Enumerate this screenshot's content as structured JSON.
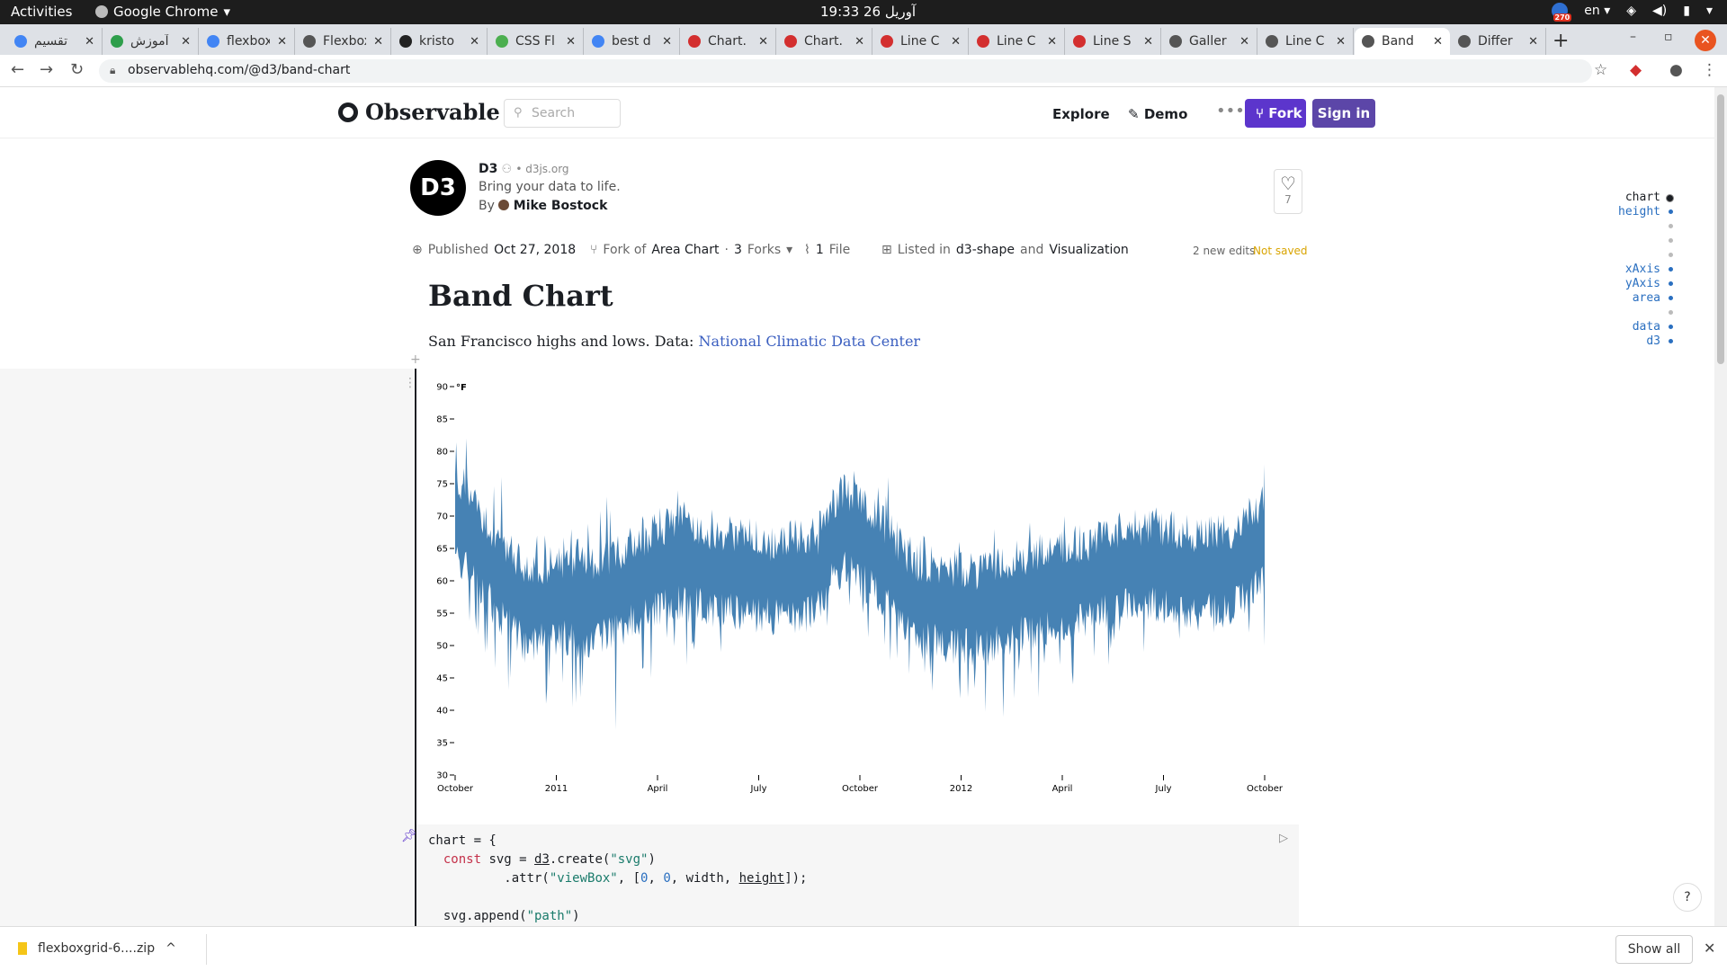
{
  "os": {
    "activities": "Activities",
    "app_name": "Google Chrome",
    "clock": "19:33  26 آوریل",
    "lang": "en",
    "notif_count": "270"
  },
  "tabs": [
    {
      "title": "تقسیم",
      "fav": "#4285f4"
    },
    {
      "title": "آموزش",
      "fav": "#2e9e4b"
    },
    {
      "title": "flexbox",
      "fav": "#4285f4"
    },
    {
      "title": "Flexbox",
      "fav": "#555555"
    },
    {
      "title": "kristo",
      "fav": "#222222"
    },
    {
      "title": "CSS Fl",
      "fav": "#4caf50"
    },
    {
      "title": "best d",
      "fav": "#4285f4"
    },
    {
      "title": "Chart.",
      "fav": "#d32f2f"
    },
    {
      "title": "Chart.",
      "fav": "#d32f2f"
    },
    {
      "title": "Line C",
      "fav": "#d32f2f"
    },
    {
      "title": "Line C",
      "fav": "#d32f2f"
    },
    {
      "title": "Line S",
      "fav": "#d32f2f"
    },
    {
      "title": "Galler",
      "fav": "#555555"
    },
    {
      "title": "Line C",
      "fav": "#555555"
    },
    {
      "title": "Band",
      "fav": "#555555"
    },
    {
      "title": "Differ",
      "fav": "#555555"
    }
  ],
  "active_tab": 14,
  "address": {
    "url": "observablehq.com/@d3/band-chart"
  },
  "header": {
    "logo": "Observable",
    "search_placeholder": "Search",
    "explore": "Explore",
    "demo": "Demo",
    "fork": "Fork",
    "sign_in": "Sign in"
  },
  "notebook": {
    "owner": "D3",
    "owner_site": "d3js.org",
    "tagline": "Bring your data to life.",
    "by": "By",
    "author": "Mike Bostock",
    "likes": "7",
    "published_label": "Published",
    "published_date": "Oct 27, 2018",
    "fork_label": "Fork of",
    "fork_of": "Area Chart",
    "forks_count": "3",
    "forks_label": "Forks",
    "files_count": "1",
    "files_label": "File",
    "listed_label": "Listed in",
    "collection1": "d3-shape",
    "and": "and",
    "collection2": "Visualization",
    "edits": "2 new edits",
    "not_saved": "Not saved",
    "title": "Band Chart",
    "description": "San Francisco highs and lows. Data:",
    "data_link": "National Climatic Data Center"
  },
  "chart_data": {
    "type": "area",
    "y_unit": "°F",
    "ylim": [
      30,
      90
    ],
    "y_ticks": [
      30,
      35,
      40,
      45,
      50,
      55,
      60,
      65,
      70,
      75,
      80,
      85,
      90
    ],
    "x_ticks": [
      "October",
      "2011",
      "April",
      "July",
      "October",
      "2012",
      "April",
      "July",
      "October"
    ],
    "x_range": [
      "2010-10-01",
      "2012-10-01"
    ],
    "color": "#4682b4",
    "series": {
      "month": [
        "2010-10",
        "2010-11",
        "2010-12",
        "2011-01",
        "2011-02",
        "2011-03",
        "2011-04",
        "2011-05",
        "2011-06",
        "2011-07",
        "2011-08",
        "2011-09",
        "2011-10",
        "2011-11",
        "2011-12",
        "2012-01",
        "2012-02",
        "2012-03",
        "2012-04",
        "2012-05",
        "2012-06",
        "2012-07",
        "2012-08",
        "2012-09"
      ],
      "high": [
        82,
        76,
        67,
        68,
        73,
        70,
        74,
        71,
        66,
        64,
        64,
        77,
        76,
        67,
        66,
        68,
        69,
        70,
        69,
        71,
        70,
        66,
        67,
        78
      ],
      "low": [
        55,
        45,
        41,
        42,
        37,
        45,
        47,
        49,
        52,
        53,
        53,
        55,
        48,
        43,
        42,
        39,
        42,
        44,
        47,
        49,
        51,
        52,
        52,
        50
      ]
    }
  },
  "code": {
    "line1": "chart = {",
    "line2a": "const",
    "line2b": " svg = ",
    "line2c": "d3",
    "line2d": ".create(",
    "line2e": "\"svg\"",
    "line2f": ")",
    "line3a": "    .attr(",
    "line3b": "\"viewBox\"",
    "line3c": ", [",
    "line3d": "0",
    "line3e": ", ",
    "line3f": "0",
    "line3g": ", width, ",
    "line3h": "height",
    "line3i": "]);",
    "line5a": "svg.append(",
    "line5b": "\"path\"",
    "line5c": ")"
  },
  "toc": [
    {
      "label": "chart",
      "mod": false,
      "cur": true
    },
    {
      "label": "height",
      "mod": true
    },
    {
      "label": "",
      "mod": false
    },
    {
      "label": "",
      "mod": false
    },
    {
      "label": "",
      "mod": false
    },
    {
      "label": "xAxis",
      "mod": true
    },
    {
      "label": "yAxis",
      "mod": true
    },
    {
      "label": "area",
      "mod": true
    },
    {
      "label": "",
      "mod": false
    },
    {
      "label": "data",
      "mod": true
    },
    {
      "label": "d3",
      "mod": true
    }
  ],
  "downloads": {
    "file": "flexboxgrid-6....zip",
    "show_all": "Show all"
  }
}
